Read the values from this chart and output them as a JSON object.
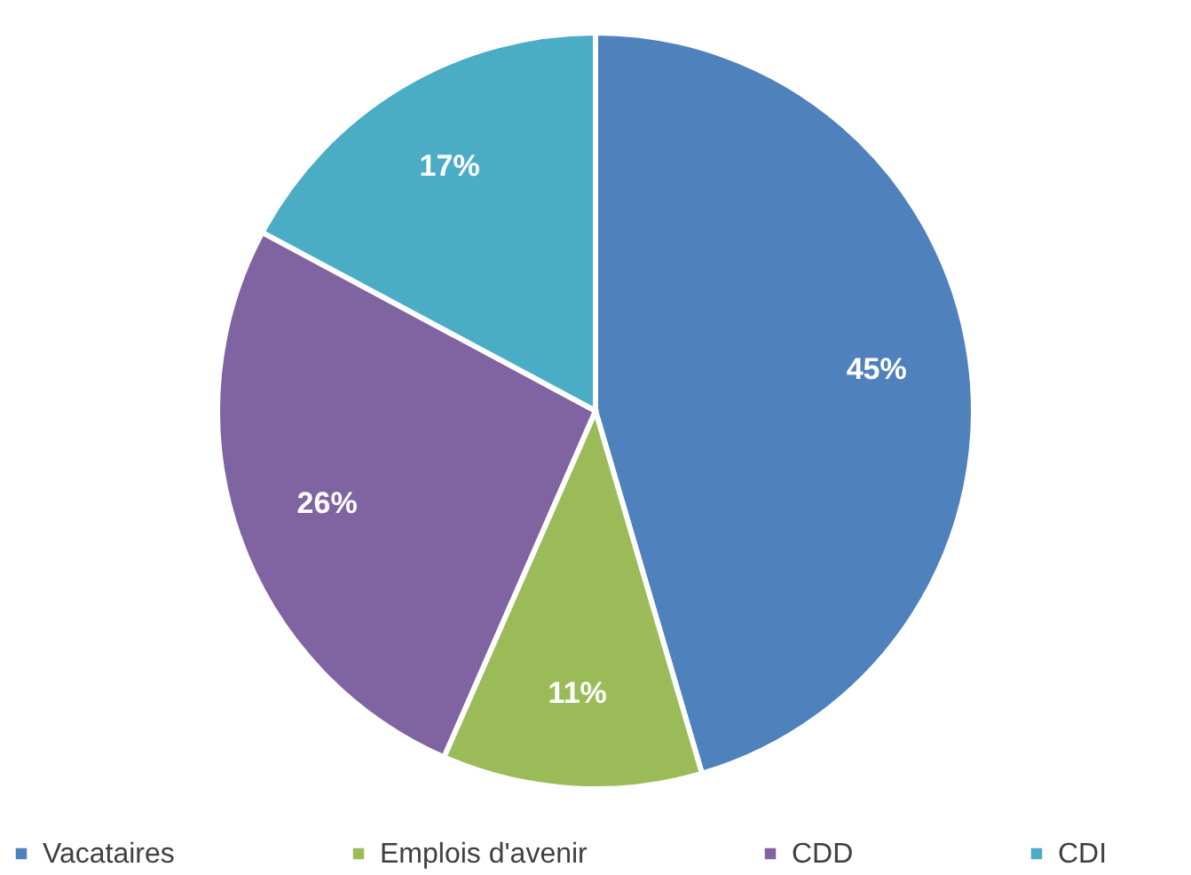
{
  "chart_data": {
    "type": "pie",
    "categories": [
      "Vacataires",
      "Emplois d'avenir",
      "CDD",
      "CDI"
    ],
    "values": [
      45,
      11,
      26,
      17
    ],
    "value_labels": [
      "45%",
      "11%",
      "26%",
      "17%"
    ],
    "colors": [
      "#4f81bd",
      "#9bbb59",
      "#8064a2",
      "#4bacc6"
    ],
    "legend": "bottom"
  }
}
